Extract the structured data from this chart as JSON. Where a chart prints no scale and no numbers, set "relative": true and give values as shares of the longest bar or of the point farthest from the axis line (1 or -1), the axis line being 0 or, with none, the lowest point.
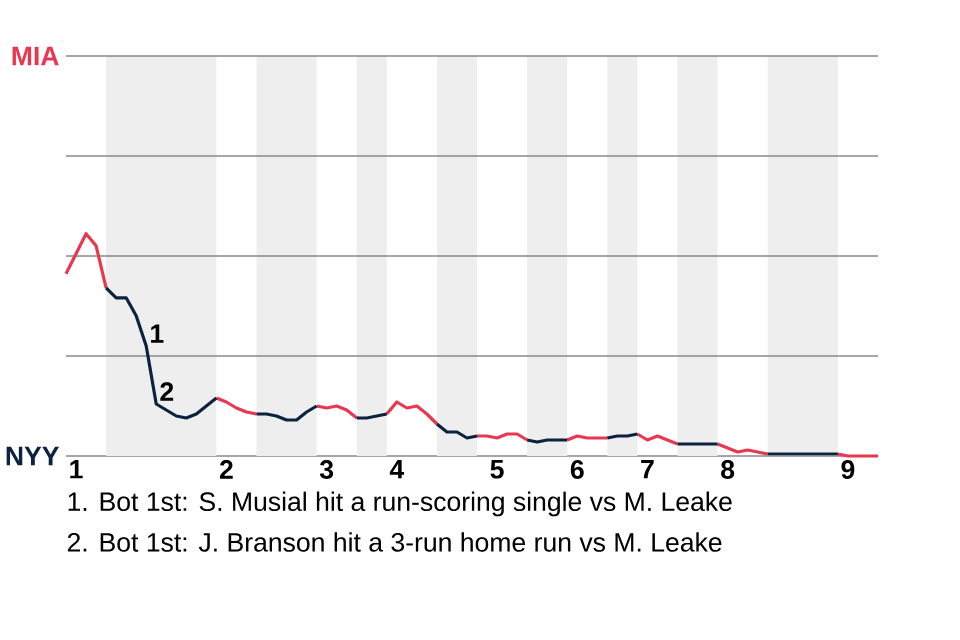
{
  "chart_data": {
    "type": "line",
    "relative": true,
    "ref_lines": [
      {
        "axis": "y",
        "value": 0.45,
        "color": "#888888"
      },
      {
        "axis": "y",
        "value": 0.9,
        "color": "#888888"
      },
      {
        "axis": "y",
        "value": 1.35,
        "color": "#888888"
      },
      {
        "axis": "y",
        "value": 1.8,
        "color": "#888888"
      }
    ],
    "categories": [
      null,
      "1",
      null,
      null,
      null,
      null,
      null,
      null,
      null,
      null,
      null,
      null,
      null,
      null,
      null,
      null,
      "2",
      null,
      null,
      null,
      null,
      null,
      null,
      null,
      null,
      null,
      "3",
      null,
      null,
      null,
      null,
      null,
      null,
      "4",
      null,
      null,
      null,
      null,
      null,
      null,
      null,
      null,
      null,
      "5",
      null,
      null,
      null,
      null,
      null,
      null,
      null,
      "6",
      null,
      null,
      null,
      null,
      null,
      null,
      "7",
      null,
      null,
      null,
      null,
      null,
      null,
      null,
      "8",
      null,
      null,
      null,
      null,
      null,
      null,
      null,
      null,
      null,
      null,
      null,
      "9",
      null,
      null,
      null
    ],
    "series": [
      {
        "color": "#e8384f",
        "values": [
          0.82,
          0.91,
          1,
          0.946,
          0.757,
          null,
          null,
          null,
          null,
          null,
          null,
          null,
          null,
          null,
          null,
          0.261,
          0.243,
          0.216,
          0.198,
          0.189,
          null,
          null,
          null,
          null,
          null,
          0.225,
          0.216,
          0.225,
          0.207,
          0.171,
          null,
          null,
          0.189,
          0.243,
          0.216,
          0.225,
          0.189,
          0.144,
          null,
          null,
          null,
          0.09,
          0.09,
          0.081,
          0.099,
          0.099,
          0.072,
          null,
          null,
          null,
          0.072,
          0.09,
          0.081,
          0.081,
          0.081,
          null,
          null,
          0.099,
          0.072,
          0.09,
          0.072,
          0.054,
          null,
          null,
          null,
          0.054,
          0.036,
          0.018,
          0.027,
          0.018,
          0.009,
          null,
          null,
          null,
          null,
          null,
          null,
          0.009,
          0,
          0,
          0,
          0
        ]
      },
      {
        "color": "#0c2340",
        "values": [
          null,
          null,
          null,
          null,
          0.757,
          0.712,
          0.712,
          0.631,
          0.495,
          0.234,
          0.207,
          0.18,
          0.171,
          0.189,
          0.225,
          0.261,
          null,
          null,
          null,
          0.189,
          0.189,
          0.18,
          0.162,
          0.162,
          0.198,
          0.225,
          null,
          null,
          null,
          0.171,
          0.171,
          0.18,
          0.189,
          null,
          null,
          null,
          null,
          0.144,
          0.108,
          0.108,
          0.081,
          0.09,
          null,
          null,
          null,
          null,
          0.072,
          0.063,
          0.072,
          0.072,
          0.072,
          null,
          null,
          null,
          0.081,
          0.09,
          0.09,
          0.099,
          null,
          null,
          null,
          0.054,
          0.054,
          0.054,
          0.054,
          0.054,
          null,
          null,
          null,
          null,
          0.009,
          0.009,
          0.009,
          0.009,
          0.009,
          0.009,
          0.009,
          0.009,
          null,
          null,
          null,
          null
        ]
      }
    ],
    "annotations": [
      "MIA",
      "NYY",
      {
        "text": "1",
        "y": 0.495
      },
      {
        "text": "2",
        "y": 0.234
      },
      "1. Bot 1st: S. Musial hit a run-scoring single vs M. Leake",
      "2. Bot 1st: J. Branson hit a 3-run home run vs M. Leake"
    ]
  }
}
